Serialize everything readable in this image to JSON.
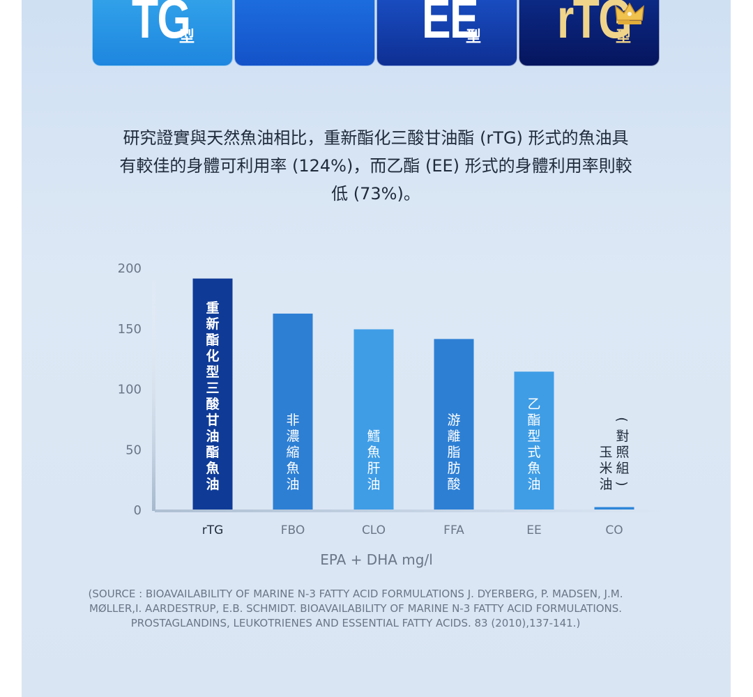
{
  "tabs": [
    {
      "big": "TG",
      "small": "型"
    },
    {
      "big": "",
      "small": ""
    },
    {
      "big": "EE",
      "small": "型"
    },
    {
      "big": "rTG",
      "small": "型"
    }
  ],
  "colors": {
    "bar_highlight": "#0f3b97",
    "bar_mid": "#2d7fd4",
    "bar_light": "#3f9de6",
    "axis": "#b8c6d6",
    "text": "#1f2a3a",
    "muted": "#6a7686"
  },
  "intro_lines": [
    "研究證實與天然魚油相比，重新酯化三酸甘油酯 (rTG) 形式的魚油具",
    "有較佳的身體可利用率 (124%)，而乙酯 (EE) 形式的身體利用率則較",
    "低 (73%)。"
  ],
  "chart_data": {
    "type": "bar",
    "categories": [
      "rTG",
      "FBO",
      "CLO",
      "FFA",
      "EE",
      "CO"
    ],
    "bar_labels": [
      [
        "重新酯化型三酸甘油酯魚油"
      ],
      [
        "非濃縮魚油"
      ],
      [
        "鱈魚肝油"
      ],
      [
        "游離脂肪酸"
      ],
      [
        "乙酯型式魚油"
      ],
      [
        "(對照組)",
        "玉米油"
      ]
    ],
    "values": [
      191,
      162,
      149,
      141,
      114,
      2
    ],
    "yticks": [
      0,
      50,
      100,
      150,
      200
    ],
    "ylim": [
      0,
      200
    ],
    "xlabel": "EPA + DHA mg/l",
    "grid": false
  },
  "source_lines": [
    "(SOURCE : BIOAVAILABILITY OF MARINE N-3 FATTY ACID FORMULATIONS J. DYERBERG, P. MADSEN, J.M.",
    "MØLLER,I. AARDESTRUP, E.B. SCHMIDT. BIOAVAILABILITY OF MARINE N-3 FATTY ACID FORMULATIONS.",
    "PROSTAGLANDINS, LEUKOTRIENES AND ESSENTIAL FATTY ACIDS. 83 (2010),137-141.)"
  ]
}
